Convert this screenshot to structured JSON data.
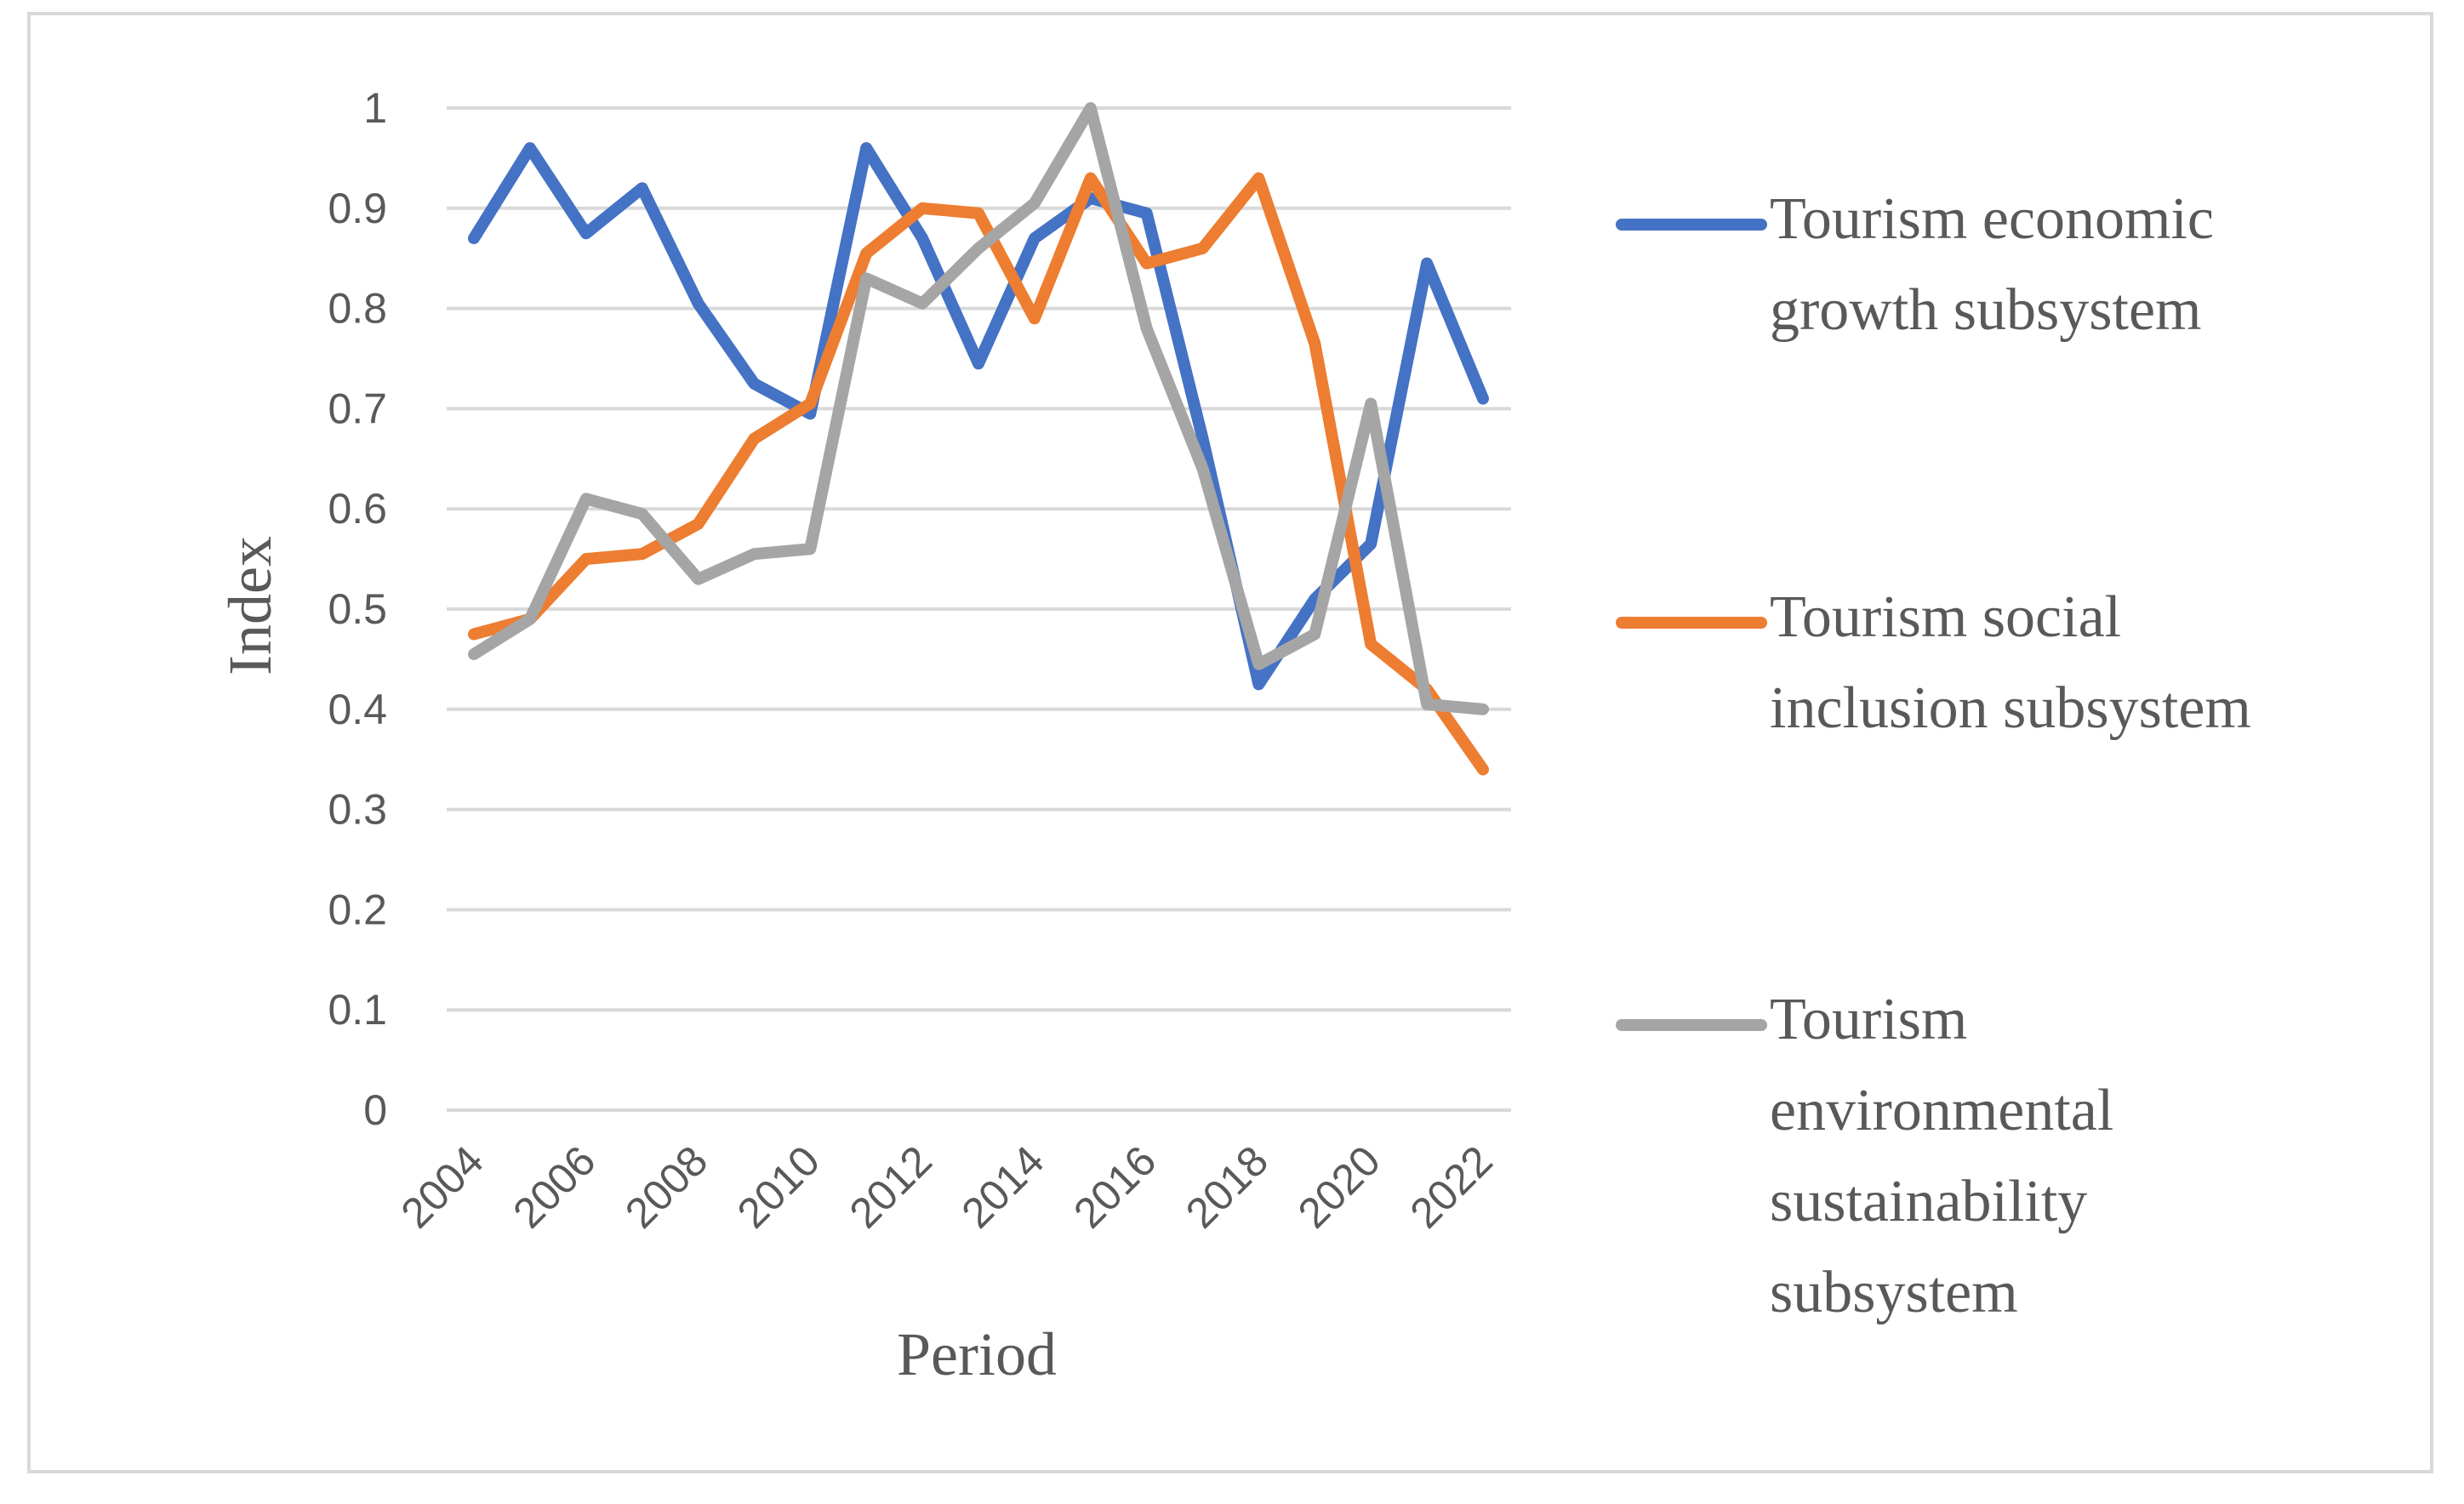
{
  "chart_data": {
    "type": "line",
    "title": "",
    "xlabel": "Period",
    "ylabel": "Index",
    "ylim": [
      0,
      1
    ],
    "y_ticks": [
      "0",
      "0.1",
      "0.2",
      "0.3",
      "0.4",
      "0.5",
      "0.6",
      "0.7",
      "0.8",
      "0.9",
      "1"
    ],
    "x": [
      2004,
      2005,
      2006,
      2007,
      2008,
      2009,
      2010,
      2011,
      2012,
      2013,
      2014,
      2015,
      2016,
      2017,
      2018,
      2019,
      2020,
      2021,
      2022
    ],
    "x_tick_labels": [
      "2004",
      "2006",
      "2008",
      "2010",
      "2012",
      "2014",
      "2016",
      "2018",
      "2020",
      "2022"
    ],
    "grid": true,
    "legend_position": "right",
    "series": [
      {
        "name": "Tourism economic growth subsystem",
        "legend_lines": [
          "Tourism economic",
          "growth subsystem"
        ],
        "color": "#4472c4",
        "values": [
          0.87,
          0.96,
          0.875,
          0.92,
          0.805,
          0.725,
          0.695,
          0.96,
          0.87,
          0.745,
          0.87,
          0.91,
          0.895,
          0.67,
          0.425,
          0.51,
          0.565,
          0.845,
          0.71
        ]
      },
      {
        "name": "Tourism social inclusion subsystem",
        "legend_lines": [
          "Tourism social",
          "inclusion subsystem"
        ],
        "color": "#ed7d31",
        "values": [
          0.475,
          0.49,
          0.55,
          0.555,
          0.585,
          0.67,
          0.705,
          0.855,
          0.9,
          0.895,
          0.79,
          0.93,
          0.845,
          0.86,
          0.93,
          0.765,
          0.465,
          0.42,
          0.34
        ]
      },
      {
        "name": "Tourism environmental sustainability subsystem",
        "legend_lines": [
          "Tourism",
          "environmental",
          "sustainability",
          "subsystem"
        ],
        "color": "#a5a5a5",
        "values": [
          0.455,
          0.49,
          0.61,
          0.595,
          0.53,
          0.555,
          0.56,
          0.83,
          0.805,
          0.86,
          0.905,
          1.0,
          0.78,
          0.64,
          0.445,
          0.475,
          0.705,
          0.405,
          0.4
        ]
      }
    ]
  }
}
